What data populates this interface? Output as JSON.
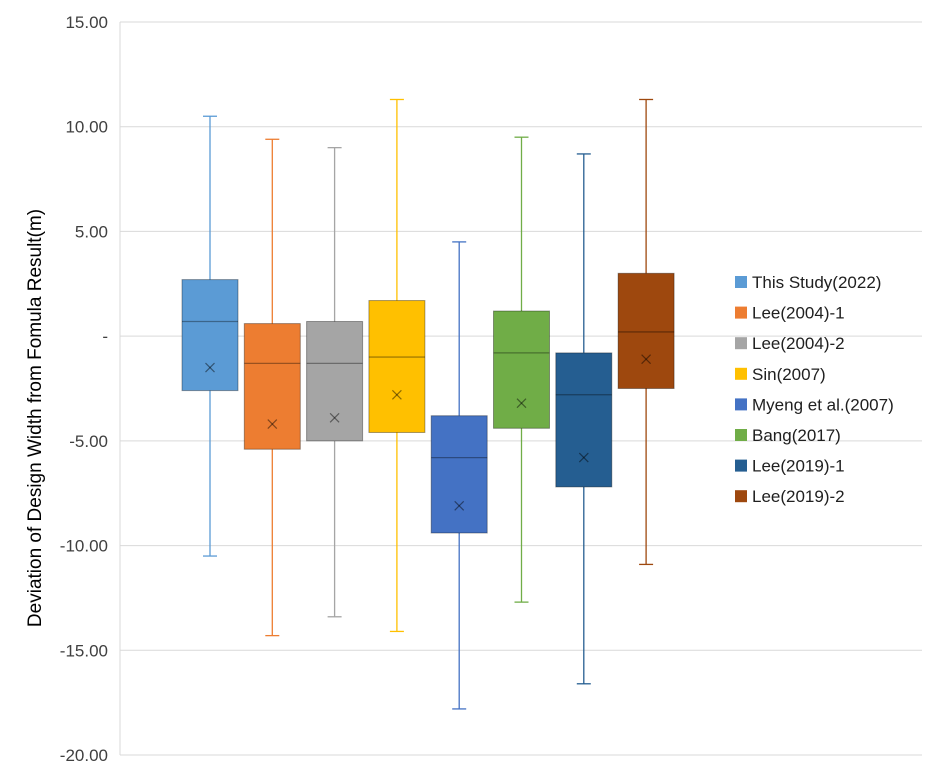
{
  "chart_data": {
    "type": "box",
    "ylabel": "Deviation of  Design Width from Fomula Result(m)",
    "ylim": [
      -20,
      15
    ],
    "y_ticks": [
      {
        "value": 15,
        "label": "15.00"
      },
      {
        "value": 10,
        "label": "10.00"
      },
      {
        "value": 5,
        "label": "5.00"
      },
      {
        "value": 0,
        "label": "-"
      },
      {
        "value": -5,
        "label": "-5.00"
      },
      {
        "value": -10,
        "label": "-10.00"
      },
      {
        "value": -15,
        "label": "-15.00"
      },
      {
        "value": -20,
        "label": "-20.00"
      }
    ],
    "grid": true,
    "legend_position": "right",
    "series": [
      {
        "name": "This Study(2022)",
        "color": "#5B9BD5",
        "min": -10.5,
        "q1": -2.6,
        "median": 0.7,
        "q3": 2.7,
        "max": 10.5,
        "mean": -1.5
      },
      {
        "name": "Lee(2004)-1",
        "color": "#ED7D31",
        "min": -14.3,
        "q1": -5.4,
        "median": -1.3,
        "q3": 0.6,
        "max": 9.4,
        "mean": -4.2
      },
      {
        "name": "Lee(2004)-2",
        "color": "#A5A5A5",
        "min": -13.4,
        "q1": -5.0,
        "median": -1.3,
        "q3": 0.7,
        "max": 9.0,
        "mean": -3.9
      },
      {
        "name": "Sin(2007)",
        "color": "#FFC000",
        "min": -14.1,
        "q1": -4.6,
        "median": -1.0,
        "q3": 1.7,
        "max": 11.3,
        "mean": -2.8
      },
      {
        "name": "Myeng et al.(2007)",
        "color": "#4472C4",
        "min": -17.8,
        "q1": -9.4,
        "median": -5.8,
        "q3": -3.8,
        "max": 4.5,
        "mean": -8.1
      },
      {
        "name": "Bang(2017)",
        "color": "#70AD47",
        "min": -12.7,
        "q1": -4.4,
        "median": -0.8,
        "q3": 1.2,
        "max": 9.5,
        "mean": -3.2
      },
      {
        "name": "Lee(2019)-1",
        "color": "#255E91",
        "min": -16.6,
        "q1": -7.2,
        "median": -2.8,
        "q3": -0.8,
        "max": 8.7,
        "mean": -5.8
      },
      {
        "name": "Lee(2019)-2",
        "color": "#9E480E",
        "min": -10.9,
        "q1": -2.5,
        "median": 0.2,
        "q3": 3.0,
        "max": 11.3,
        "mean": -1.1
      }
    ]
  }
}
